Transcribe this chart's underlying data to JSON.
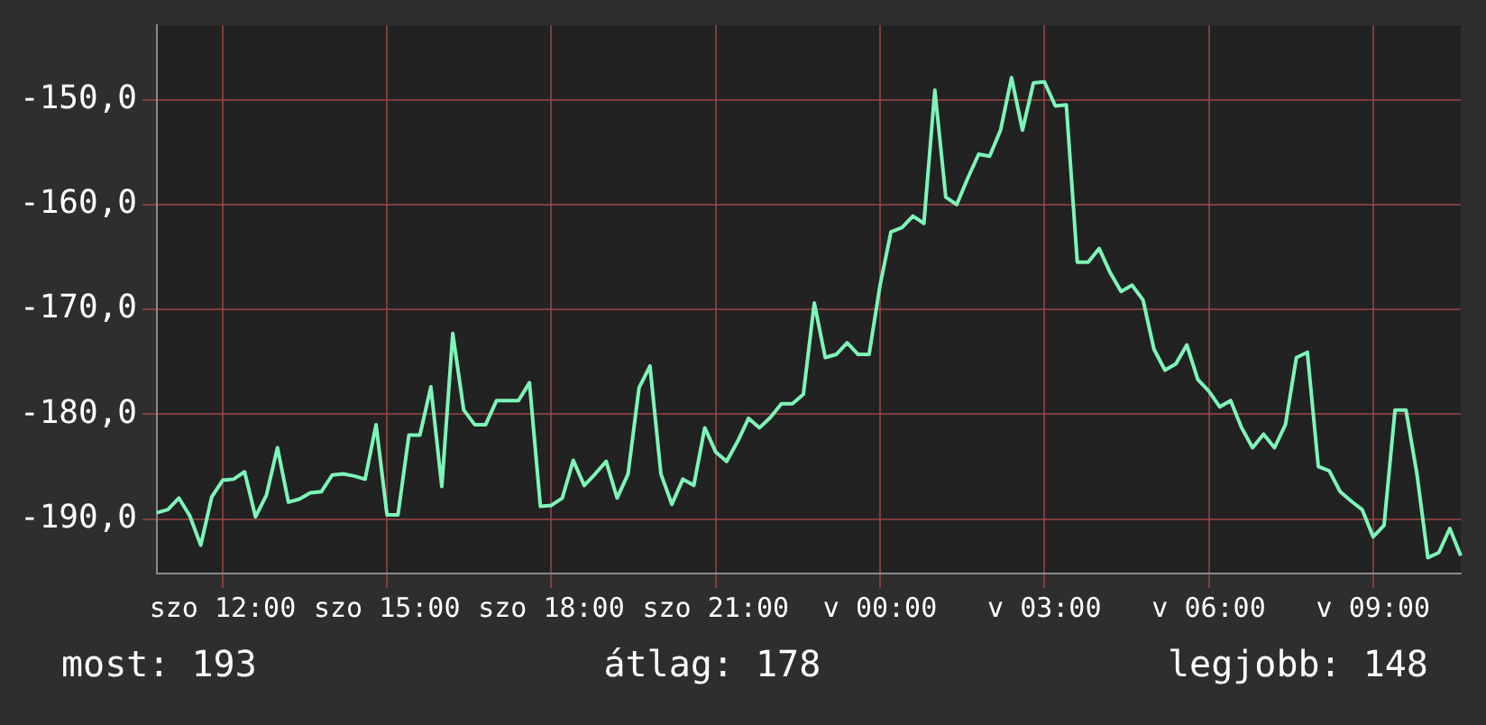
{
  "chart_data": {
    "type": "line",
    "categories": [
      null,
      null,
      null,
      null,
      null,
      null,
      "szo 12:00",
      null,
      null,
      null,
      null,
      null,
      null,
      null,
      null,
      null,
      null,
      null,
      null,
      null,
      null,
      "szo 15:00",
      null,
      null,
      null,
      null,
      null,
      null,
      null,
      null,
      null,
      null,
      null,
      null,
      null,
      null,
      "szo 18:00",
      null,
      null,
      null,
      null,
      null,
      null,
      null,
      null,
      null,
      null,
      null,
      null,
      null,
      null,
      "szo 21:00",
      null,
      null,
      null,
      null,
      null,
      null,
      null,
      null,
      null,
      null,
      null,
      null,
      null,
      null,
      "v 00:00",
      null,
      null,
      null,
      null,
      null,
      null,
      null,
      null,
      null,
      null,
      null,
      null,
      null,
      null,
      "v 03:00",
      null,
      null,
      null,
      null,
      null,
      null,
      null,
      null,
      null,
      null,
      null,
      null,
      null,
      null,
      "v 06:00",
      null,
      null,
      null,
      null,
      null,
      null,
      null,
      null,
      null,
      null,
      null,
      null,
      null,
      null,
      "v 09:00",
      null,
      null,
      null,
      null,
      null,
      null,
      null,
      null
    ],
    "ylim": [
      -195.2,
      -142.9
    ],
    "yticks": [
      {
        "value": -190,
        "label": "-190,0"
      },
      {
        "value": -180,
        "label": "-180,0"
      },
      {
        "value": -170,
        "label": "-170,0"
      },
      {
        "value": -160,
        "label": "-160,0"
      },
      {
        "value": -150,
        "label": "-150,0"
      }
    ],
    "grid": true,
    "legend": false,
    "marker": "none",
    "line_style": "solid",
    "annotations": [
      "most: 193",
      "átlag: 178",
      "legjobb: 148"
    ],
    "series": [
      {
        "color": "#7df5b8",
        "values": [
          -189.4,
          -189.1,
          -188.0,
          -189.7,
          -192.5,
          -187.9,
          -186.3,
          -186.2,
          -185.5,
          -189.8,
          -187.7,
          -183.2,
          -188.4,
          -188.1,
          -187.5,
          -187.4,
          -185.8,
          -185.7,
          -185.9,
          -186.2,
          -181.0,
          -189.6,
          -189.6,
          -182.0,
          -182.0,
          -177.4,
          -186.9,
          -172.3,
          -179.6,
          -181.0,
          -181.0,
          -178.7,
          -178.7,
          -178.7,
          -177.0,
          -188.8,
          -188.7,
          -188.0,
          -184.4,
          -186.8,
          -185.7,
          -184.5,
          -188.0,
          -185.7,
          -177.5,
          -175.4,
          -185.7,
          -188.6,
          -186.2,
          -186.8,
          -181.3,
          -183.6,
          -184.5,
          -182.6,
          -180.4,
          -181.3,
          -180.3,
          -179.0,
          -179.0,
          -178.1,
          -169.4,
          -174.6,
          -174.3,
          -173.2,
          -174.3,
          -174.3,
          -167.7,
          -162.6,
          -162.2,
          -161.1,
          -161.8,
          -149.1,
          -159.3,
          -160.0,
          -157.5,
          -155.2,
          -155.4,
          -152.9,
          -147.9,
          -152.9,
          -148.4,
          -148.3,
          -150.6,
          -150.5,
          -165.5,
          -165.5,
          -164.2,
          -166.5,
          -168.3,
          -167.7,
          -169.1,
          -173.8,
          -175.8,
          -175.2,
          -173.4,
          -176.7,
          -177.8,
          -179.3,
          -178.7,
          -181.3,
          -183.2,
          -181.9,
          -183.2,
          -181.0,
          -174.6,
          -174.1,
          -185.0,
          -185.4,
          -187.4,
          -188.3,
          -189.1,
          -191.7,
          -190.6,
          -179.6,
          -179.6,
          -185.7,
          -193.7,
          -193.2,
          -190.9,
          -193.5
        ]
      }
    ]
  }
}
